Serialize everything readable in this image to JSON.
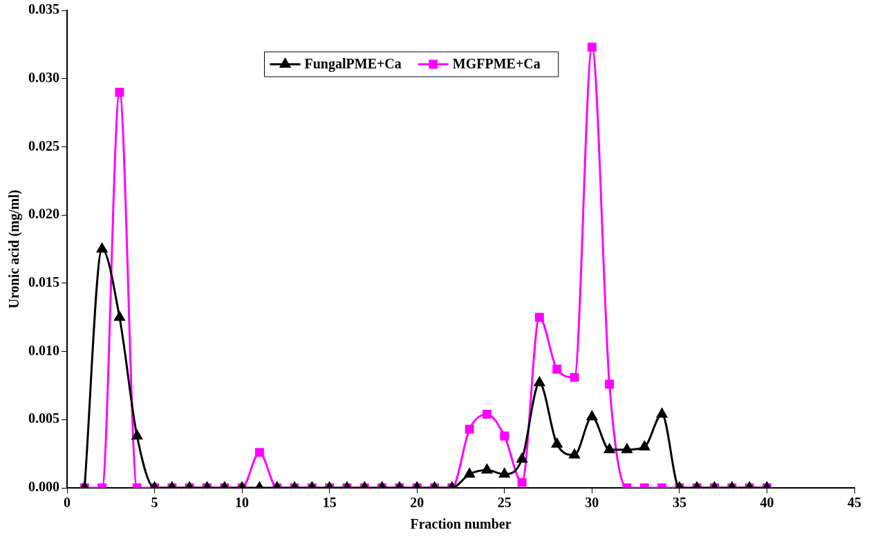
{
  "chart_data": {
    "type": "line",
    "xlabel": "Fraction number",
    "ylabel": "Uronic acid (mg/ml)",
    "x": [
      1,
      2,
      3,
      4,
      5,
      6,
      7,
      8,
      9,
      10,
      11,
      12,
      13,
      14,
      15,
      16,
      17,
      18,
      19,
      20,
      21,
      22,
      23,
      24,
      25,
      26,
      27,
      28,
      29,
      30,
      31,
      32,
      33,
      34,
      35,
      36,
      37,
      38,
      39,
      40
    ],
    "series": [
      {
        "name": "FungalPME+Ca",
        "color": "#000000",
        "marker": "triangle",
        "values": [
          0,
          0.0175,
          0.0125,
          0.0038,
          0,
          0,
          0,
          0,
          0,
          0,
          0,
          0,
          0,
          0,
          0,
          0,
          0,
          0,
          0,
          0,
          0,
          0,
          0.001,
          0.0013,
          0.001,
          0.0021,
          0.0077,
          0.0032,
          0.0024,
          0.0052,
          0.0028,
          0.0028,
          0.003,
          0.0054,
          0,
          0,
          0,
          0,
          0,
          0
        ]
      },
      {
        "name": "MGFPME+Ca",
        "color": "#ff00ff",
        "marker": "square",
        "values": [
          0,
          0,
          0.029,
          0,
          0,
          0,
          0,
          0,
          0,
          0,
          0.0026,
          0,
          0,
          0,
          0,
          0,
          0,
          0,
          0,
          0,
          0,
          0,
          0.0043,
          0.0054,
          0.0038,
          0.0004,
          0.0125,
          0.0087,
          0.0081,
          0.0323,
          0.0076,
          0,
          0,
          0,
          0,
          0,
          0,
          0,
          0,
          0
        ]
      }
    ],
    "xlim": [
      0,
      45
    ],
    "xticks": [
      0,
      5,
      10,
      15,
      20,
      25,
      30,
      35,
      40,
      45
    ],
    "ylim": [
      0,
      0.035
    ],
    "yticks": [
      {
        "value": 0,
        "label": "0.000"
      },
      {
        "value": 0.005,
        "label": "0.005"
      },
      {
        "value": 0.01,
        "label": "0.010"
      },
      {
        "value": 0.015,
        "label": "0.015"
      },
      {
        "value": 0.02,
        "label": "0.020"
      },
      {
        "value": 0.025,
        "label": "0.025"
      },
      {
        "value": 0.03,
        "label": "0.030"
      },
      {
        "value": 0.035,
        "label": "0.035"
      }
    ],
    "grid": false,
    "legend": "top"
  }
}
